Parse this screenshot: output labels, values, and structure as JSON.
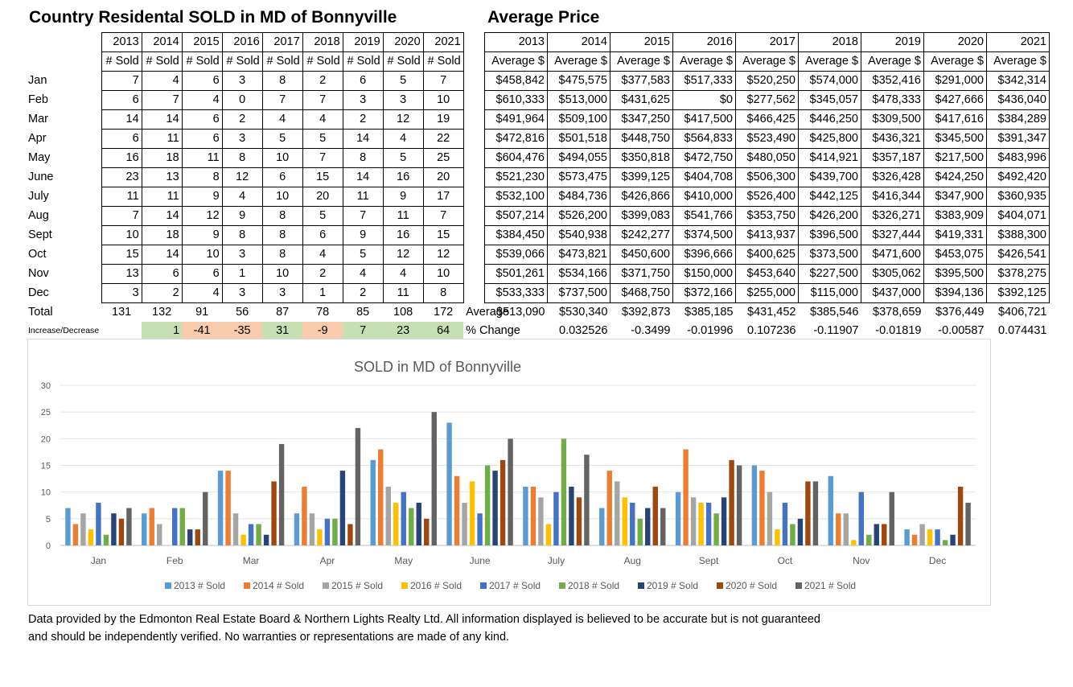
{
  "sold_title": "Country Residental SOLD in MD of Bonnyville",
  "price_title": "Average Price",
  "years": [
    "2013",
    "2014",
    "2015",
    "2016",
    "2017",
    "2018",
    "2019",
    "2020",
    "2021"
  ],
  "sold_header": "# Sold",
  "months": [
    "Jan",
    "Feb",
    "Mar",
    "Apr",
    "May",
    "June",
    "July",
    "Aug",
    "Sept",
    "Oct",
    "Nov",
    "Dec"
  ],
  "sold_rows": [
    [
      "7",
      "4",
      "6",
      "3",
      "8",
      "2",
      "6",
      "5",
      "7"
    ],
    [
      "6",
      "7",
      "4",
      "0",
      "7",
      "7",
      "3",
      "3",
      "10"
    ],
    [
      "14",
      "14",
      "6",
      "2",
      "4",
      "4",
      "2",
      "12",
      "19"
    ],
    [
      "6",
      "11",
      "6",
      "3",
      "5",
      "5",
      "14",
      "4",
      "22"
    ],
    [
      "16",
      "18",
      "11",
      "8",
      "10",
      "7",
      "8",
      "5",
      "25"
    ],
    [
      "23",
      "13",
      "8",
      "12",
      "6",
      "15",
      "14",
      "16",
      "20"
    ],
    [
      "11",
      "11",
      "9",
      "4",
      "10",
      "20",
      "11",
      "9",
      "17"
    ],
    [
      "7",
      "14",
      "12",
      "9",
      "8",
      "5",
      "7",
      "11",
      "7"
    ],
    [
      "10",
      "18",
      "9",
      "8",
      "8",
      "6",
      "9",
      "16",
      "15"
    ],
    [
      "15",
      "14",
      "10",
      "3",
      "8",
      "4",
      "5",
      "12",
      "12"
    ],
    [
      "13",
      "6",
      "6",
      "1",
      "10",
      "2",
      "4",
      "4",
      "10"
    ],
    [
      "3",
      "2",
      "4",
      "3",
      "3",
      "1",
      "2",
      "11",
      "8"
    ]
  ],
  "total_label": "Total",
  "totals": [
    "131",
    "132",
    "91",
    "56",
    "87",
    "78",
    "85",
    "108",
    "172"
  ],
  "increase_label": "Increase/Decrease",
  "increases": [
    "1",
    "-41",
    "-35",
    "31",
    "-9",
    "7",
    "23",
    "64"
  ],
  "average_label": "Average",
  "pct_change_label": "% Change",
  "price_header": "Average $",
  "price_rows": [
    [
      "$458,842",
      "$475,575",
      "$377,583",
      "$517,333",
      "$520,250",
      "$574,000",
      "$352,416",
      "$291,000",
      "$342,314"
    ],
    [
      "$610,333",
      "$513,000",
      "$431,625",
      "$0",
      "$277,562",
      "$345,057",
      "$478,333",
      "$427,666",
      "$436,040"
    ],
    [
      "$491,964",
      "$509,100",
      "$347,250",
      "$417,500",
      "$466,425",
      "$446,250",
      "$309,500",
      "$417,616",
      "$384,289"
    ],
    [
      "$472,816",
      "$501,518",
      "$448,750",
      "$564,833",
      "$523,490",
      "$425,800",
      "$436,321",
      "$345,500",
      "$391,347"
    ],
    [
      "$604,476",
      "$494,055",
      "$350,818",
      "$472,750",
      "$480,050",
      "$414,921",
      "$357,187",
      "$217,500",
      "$483,996"
    ],
    [
      "$521,230",
      "$573,475",
      "$399,125",
      "$404,708",
      "$506,300",
      "$439,700",
      "$326,428",
      "$424,250",
      "$492,420"
    ],
    [
      "$532,100",
      "$484,736",
      "$426,866",
      "$410,000",
      "$526,400",
      "$442,125",
      "$416,344",
      "$347,900",
      "$360,935"
    ],
    [
      "$507,214",
      "$526,200",
      "$399,083",
      "$541,766",
      "$353,750",
      "$426,200",
      "$326,271",
      "$383,909",
      "$404,071"
    ],
    [
      "$384,450",
      "$540,938",
      "$242,277",
      "$374,500",
      "$413,937",
      "$396,500",
      "$327,444",
      "$419,331",
      "$388,300"
    ],
    [
      "$539,066",
      "$473,821",
      "$450,600",
      "$396,666",
      "$400,625",
      "$373,500",
      "$471,600",
      "$453,075",
      "$426,541"
    ],
    [
      "$501,261",
      "$534,166",
      "$371,750",
      "$150,000",
      "$453,640",
      "$227,500",
      "$305,062",
      "$395,500",
      "$378,275"
    ],
    [
      "$533,333",
      "$737,500",
      "$468,750",
      "$372,166",
      "$255,000",
      "$115,000",
      "$437,000",
      "$394,136",
      "$392,125"
    ]
  ],
  "price_averages": [
    "$513,090",
    "$530,340",
    "$392,873",
    "$385,185",
    "$431,452",
    "$385,546",
    "$378,659",
    "$376,449",
    "$406,721"
  ],
  "price_pct_changes": [
    "0.032526",
    "-0.3499",
    "-0.01996",
    "0.107236",
    "-0.11907",
    "-0.01819",
    "-0.00587",
    "0.074431"
  ],
  "footer_line1": "Data provided by the Edmonton Real Estate Board & Northern Lights Realty Ltd. All information displayed is believed to be accurate but is not guaranteed",
  "footer_line2": "and should be independently verified. No warranties or representations are made of any kind.",
  "chart_data": {
    "type": "bar",
    "title": "SOLD in MD of Bonnyville",
    "categories": [
      "Jan",
      "Feb",
      "Mar",
      "Apr",
      "May",
      "June",
      "July",
      "Aug",
      "Sept",
      "Oct",
      "Nov",
      "Dec"
    ],
    "ylim": [
      0,
      30
    ],
    "yticks": [
      0,
      5,
      10,
      15,
      20,
      25,
      30
    ],
    "grid": true,
    "legend": "bottom",
    "series": [
      {
        "name": "2013 # Sold",
        "color": "#5b9bd5",
        "values": [
          7,
          6,
          14,
          6,
          16,
          23,
          11,
          7,
          10,
          15,
          13,
          3
        ]
      },
      {
        "name": "2014 # Sold",
        "color": "#ed7d31",
        "values": [
          4,
          7,
          14,
          11,
          18,
          13,
          11,
          14,
          18,
          14,
          6,
          2
        ]
      },
      {
        "name": "2015 # Sold",
        "color": "#a5a5a5",
        "values": [
          6,
          4,
          6,
          6,
          11,
          8,
          9,
          12,
          9,
          10,
          6,
          4
        ]
      },
      {
        "name": "2016 # Sold",
        "color": "#ffc000",
        "values": [
          3,
          0,
          2,
          3,
          8,
          12,
          4,
          9,
          8,
          3,
          1,
          3
        ]
      },
      {
        "name": "2017 # Sold",
        "color": "#4472c4",
        "values": [
          8,
          7,
          4,
          5,
          10,
          6,
          10,
          8,
          8,
          8,
          10,
          3
        ]
      },
      {
        "name": "2018 # Sold",
        "color": "#70ad47",
        "values": [
          2,
          7,
          4,
          5,
          7,
          15,
          20,
          5,
          6,
          4,
          2,
          1
        ]
      },
      {
        "name": "2019 # Sold",
        "color": "#264478",
        "values": [
          6,
          3,
          2,
          14,
          8,
          14,
          11,
          7,
          9,
          5,
          4,
          2
        ]
      },
      {
        "name": "2020 # Sold",
        "color": "#9e480e",
        "values": [
          5,
          3,
          12,
          4,
          5,
          16,
          9,
          11,
          16,
          12,
          4,
          11
        ]
      },
      {
        "name": "2021 # Sold",
        "color": "#636363",
        "values": [
          7,
          10,
          19,
          22,
          25,
          20,
          17,
          7,
          15,
          12,
          10,
          8
        ]
      }
    ]
  }
}
